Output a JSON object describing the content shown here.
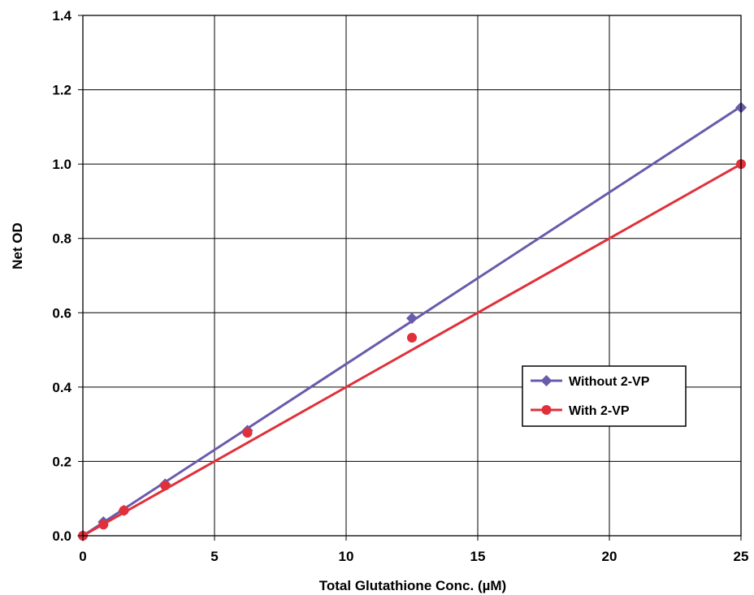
{
  "chart_data": {
    "type": "scatter",
    "title": "",
    "xlabel": "Total Glutathione Conc. (µM)",
    "ylabel": "Net OD",
    "xlim": [
      0,
      25
    ],
    "ylim": [
      0,
      1.4
    ],
    "x_ticks": [
      0,
      5,
      10,
      15,
      20,
      25
    ],
    "y_ticks": [
      0.0,
      0.2,
      0.4,
      0.6,
      0.8,
      1.0,
      1.2,
      1.4
    ],
    "x_tick_labels": [
      "0",
      "5",
      "10",
      "15",
      "20",
      "25"
    ],
    "y_tick_labels": [
      "0.0",
      "0.2",
      "0.4",
      "0.6",
      "0.8",
      "1.0",
      "1.2",
      "1.4"
    ],
    "grid": true,
    "legend_position": "right-center",
    "series": [
      {
        "name": "Without 2-VP",
        "color": "#6a5aab",
        "marker": "diamond",
        "x": [
          0,
          0.78,
          1.56,
          3.125,
          6.25,
          12.5,
          25
        ],
        "y": [
          0.0,
          0.037,
          0.068,
          0.139,
          0.283,
          0.585,
          1.152
        ],
        "fit_line": {
          "x": [
            0,
            25
          ],
          "y": [
            0.0,
            1.155
          ]
        }
      },
      {
        "name": "With 2-VP",
        "color": "#e0303a",
        "marker": "circle",
        "x": [
          0,
          0.78,
          1.56,
          3.125,
          6.25,
          12.5,
          25
        ],
        "y": [
          0.0,
          0.03,
          0.068,
          0.135,
          0.277,
          0.533,
          1.0
        ],
        "fit_line": {
          "x": [
            0,
            25
          ],
          "y": [
            0.0,
            1.0
          ]
        }
      }
    ]
  }
}
